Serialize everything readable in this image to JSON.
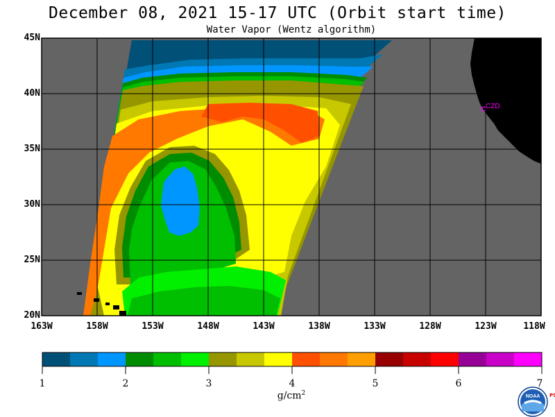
{
  "header": {
    "title": "December 08, 2021  15-17 UTC  (Orbit start time)",
    "subtitle": "Water Vapor (Wentz algorithm)"
  },
  "map": {
    "lat_labels": [
      "45N",
      "40N",
      "35N",
      "30N",
      "25N",
      "20N"
    ],
    "lon_labels": [
      "163W",
      "158W",
      "153W",
      "148W",
      "143W",
      "138W",
      "133W",
      "128W",
      "123W",
      "118W"
    ],
    "lat_range": [
      20,
      45
    ],
    "lon_range": [
      -163,
      -118
    ],
    "grid": true,
    "station_label": "CZD",
    "colors": {
      "no_data": "#646464",
      "land": "#000000",
      "grid": "#000000",
      "station": "#ff00ff"
    }
  },
  "colorbar": {
    "tick_labels": [
      "1",
      "2",
      "3",
      "4",
      "5",
      "6",
      "7"
    ],
    "units_base": "g/cm",
    "units_exp": "2",
    "range": [
      1,
      7
    ],
    "colors": [
      "#005078",
      "#0078b4",
      "#0096ff",
      "#008c00",
      "#00be00",
      "#00f000",
      "#969600",
      "#c8c800",
      "#ffff00",
      "#ff5000",
      "#ff7800",
      "#ffa000",
      "#960000",
      "#c80000",
      "#ff0000",
      "#960096",
      "#c800c8",
      "#ff00ff"
    ]
  },
  "logo": {
    "name": "NOAA",
    "side_text": "PSL"
  }
}
